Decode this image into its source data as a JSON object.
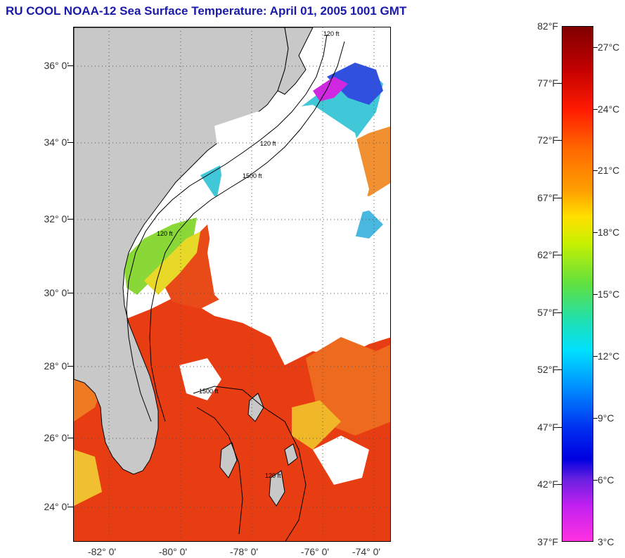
{
  "title": "RU COOL  NOAA-12  Sea Surface Temperature:  April 01, 2005 1001 GMT",
  "map": {
    "lat_labels": [
      "36° 0'",
      "34° 0'",
      "32° 0'",
      "30° 0'",
      "28° 0'",
      "26° 0'",
      "24° 0'"
    ],
    "lon_labels": [
      "-82° 0'",
      "-80° 0'",
      "-78° 0'",
      "-76° 0'",
      "-74° 0'"
    ],
    "contour_labels": [
      "120 ft",
      "120 ft",
      "1500 ft",
      "120 ft",
      "1500 ft",
      "120 ft"
    ],
    "colors": {
      "land": "#c8c8c8",
      "cloud": "#ffffff",
      "warm": "#e83010",
      "orange": "#f08020",
      "yellow": "#e8e820",
      "green": "#60d060",
      "cyan": "#30c8e8",
      "blue": "#2040e0",
      "magenta": "#e020e0"
    }
  },
  "colorbar": {
    "fahrenheit": [
      "82°F",
      "77°F",
      "72°F",
      "67°F",
      "62°F",
      "57°F",
      "52°F",
      "47°F",
      "42°F",
      "37°F"
    ],
    "celsius": [
      "27°C",
      "24°C",
      "21°C",
      "18°C",
      "15°C",
      "12°C",
      "9°C",
      "6°C",
      "3°C"
    ]
  }
}
